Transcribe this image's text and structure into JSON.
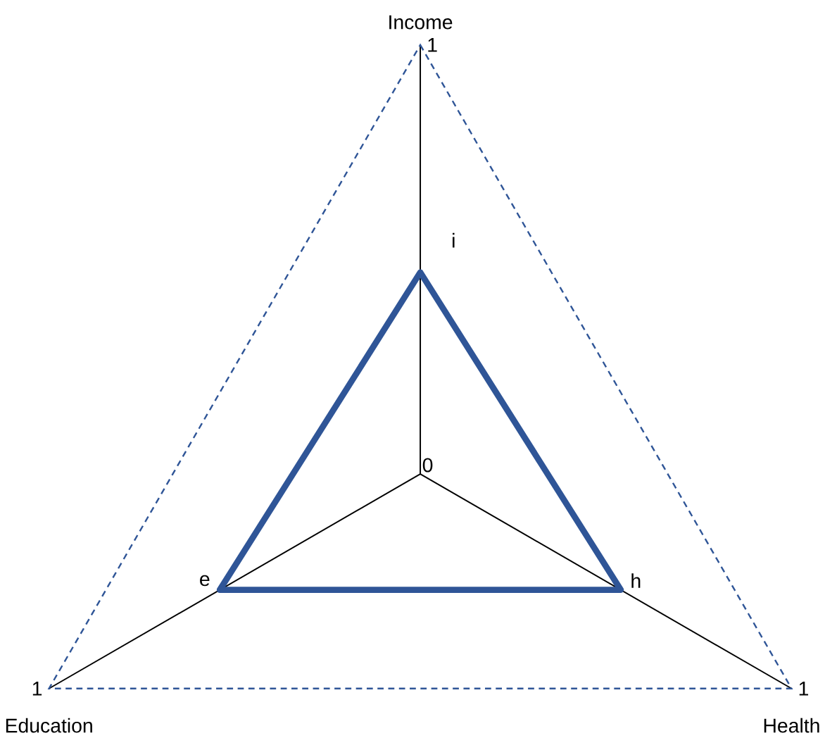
{
  "chart_data": {
    "type": "radar",
    "categories": [
      "Income",
      "Health",
      "Education"
    ],
    "series": [
      {
        "color": "#2f5597",
        "values": [
          0.47,
          0.54,
          0.54
        ]
      }
    ],
    "ylim": [
      0,
      1
    ],
    "yticks": [
      0,
      1
    ],
    "grid": true,
    "annotations": [
      "i",
      "h",
      "e",
      "1",
      "1"
    ]
  }
}
